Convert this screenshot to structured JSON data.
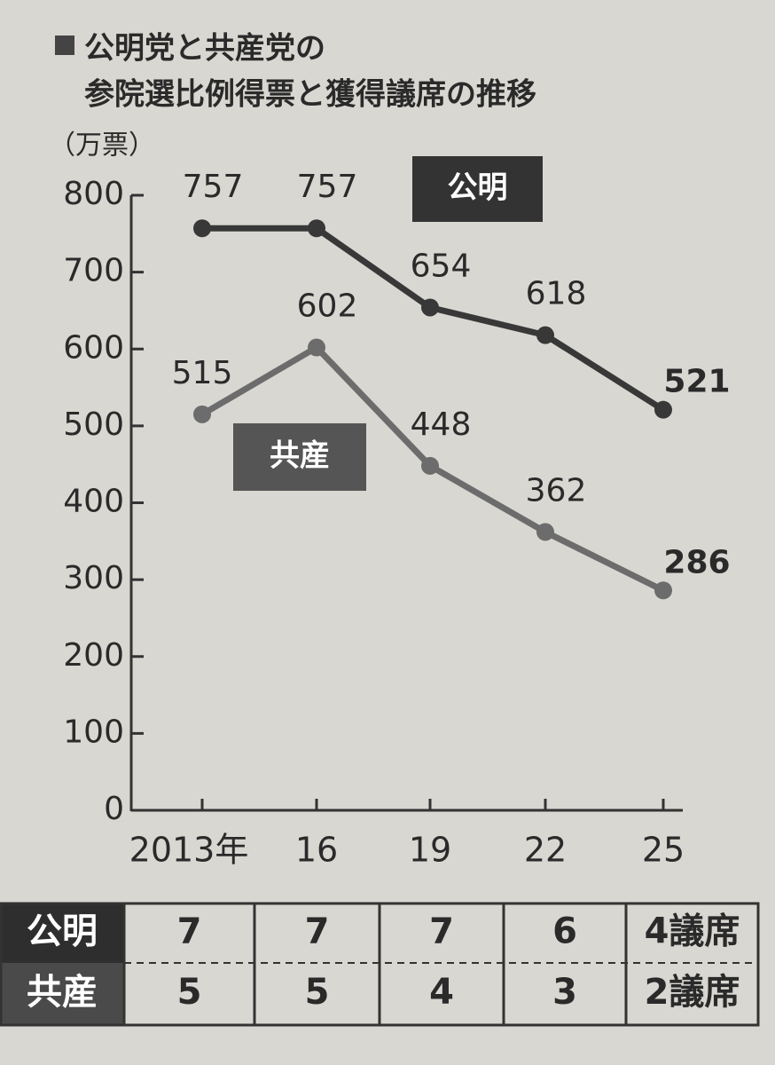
{
  "chart_data": {
    "type": "line",
    "title": [
      "公明党と共産党の",
      "参院選比例得票と獲得議席の推移"
    ],
    "y_axis_label": "（万票）",
    "categories": [
      "2013年",
      "16",
      "19",
      "22",
      "25"
    ],
    "series": [
      {
        "name": "公明",
        "color": "#383838",
        "values": [
          757,
          757,
          654,
          618,
          521
        ]
      },
      {
        "name": "共産",
        "color": "#6c6c6c",
        "values": [
          515,
          602,
          448,
          362,
          286
        ]
      }
    ],
    "ylim": [
      0,
      800
    ],
    "yticks": [
      0,
      100,
      200,
      300,
      400,
      500,
      600,
      700,
      800
    ],
    "grid": false
  },
  "seat_table": {
    "rows": [
      {
        "party": "公明",
        "values": [
          7,
          7,
          7,
          6,
          4
        ],
        "value_labels": [
          "7",
          "7",
          "7",
          "6",
          "4議席"
        ]
      },
      {
        "party": "共産",
        "values": [
          5,
          5,
          4,
          3,
          2
        ],
        "value_labels": [
          "5",
          "5",
          "4",
          "3",
          "2議席"
        ]
      }
    ]
  }
}
